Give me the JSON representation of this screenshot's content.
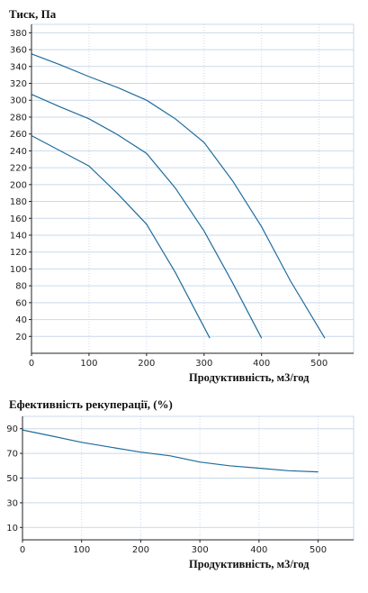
{
  "chart_data": [
    {
      "type": "line",
      "title": "Тиск, Па",
      "xlabel": "Продуктивність, м3/год",
      "ylabel": "",
      "xlim": [
        0,
        560
      ],
      "ylim": [
        0,
        390
      ],
      "xticks": [
        0,
        100,
        200,
        300,
        400,
        500
      ],
      "yticks": [
        20,
        40,
        60,
        80,
        100,
        120,
        140,
        160,
        180,
        200,
        220,
        240,
        260,
        280,
        300,
        320,
        340,
        360,
        380
      ],
      "grid": "vertical-dotted, horizontal-solid",
      "legend": "none",
      "series": [
        {
          "x": [
            0,
            50,
            100,
            150,
            200,
            250,
            300,
            350,
            400,
            450,
            510
          ],
          "values": [
            355,
            342,
            328,
            315,
            300,
            278,
            250,
            204,
            150,
            86,
            18
          ]
        },
        {
          "x": [
            0,
            50,
            100,
            150,
            200,
            250,
            300,
            350,
            400
          ],
          "values": [
            307,
            292,
            278,
            259,
            237,
            196,
            145,
            83,
            18
          ]
        },
        {
          "x": [
            0,
            50,
            100,
            150,
            200,
            250,
            310
          ],
          "values": [
            258,
            240,
            222,
            189,
            153,
            96,
            18
          ]
        }
      ]
    },
    {
      "type": "line",
      "title": "Ефективність рекуперації, (%)",
      "xlabel": "Продуктивність, м3/год",
      "ylabel": "",
      "xlim": [
        0,
        560
      ],
      "ylim": [
        0,
        100
      ],
      "xticks": [
        0,
        100,
        200,
        300,
        400,
        500
      ],
      "yticks": [
        10,
        30,
        50,
        70,
        90
      ],
      "grid": "vertical-dotted, horizontal-solid",
      "legend": "none",
      "series": [
        {
          "x": [
            0,
            50,
            100,
            150,
            200,
            250,
            300,
            350,
            400,
            450,
            500
          ],
          "values": [
            89,
            84,
            79,
            75,
            71,
            68,
            63,
            60,
            58,
            56,
            55
          ]
        }
      ]
    }
  ]
}
